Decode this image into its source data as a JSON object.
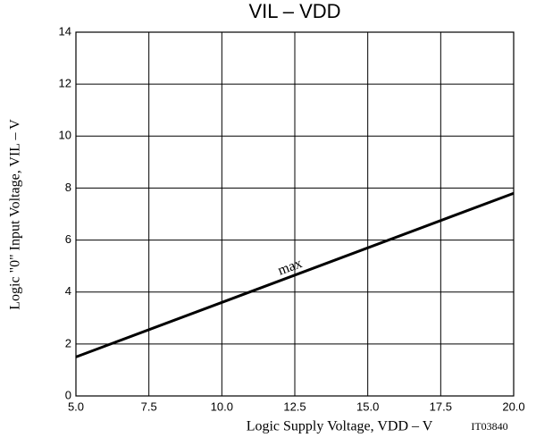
{
  "chart_data": {
    "type": "line",
    "title": "VIL – VDD",
    "x_label": "Logic Supply Voltage, VDD – V",
    "y_label": "Logic \"0\" Input Voltage, VIL – V",
    "annotations": [
      "max",
      "IT03840"
    ],
    "x": [
      5,
      20
    ],
    "series": [
      {
        "name": "max",
        "color": "#000000",
        "values": [
          1.5,
          7.8
        ]
      }
    ],
    "xlim": [
      5,
      20
    ],
    "xticks": [
      {
        "value": 5,
        "label": "5.0"
      },
      {
        "value": 7.5,
        "label": "7.5"
      },
      {
        "value": 10,
        "label": "10.0"
      },
      {
        "value": 12.5,
        "label": "12.5"
      },
      {
        "value": 15,
        "label": "15.0"
      },
      {
        "value": 17.5,
        "label": "17.5"
      },
      {
        "value": 20,
        "label": "20.0"
      }
    ],
    "ylim": [
      0,
      14
    ],
    "yticks": [
      0,
      2,
      4,
      6,
      8,
      10,
      12,
      14
    ],
    "grid": true
  }
}
